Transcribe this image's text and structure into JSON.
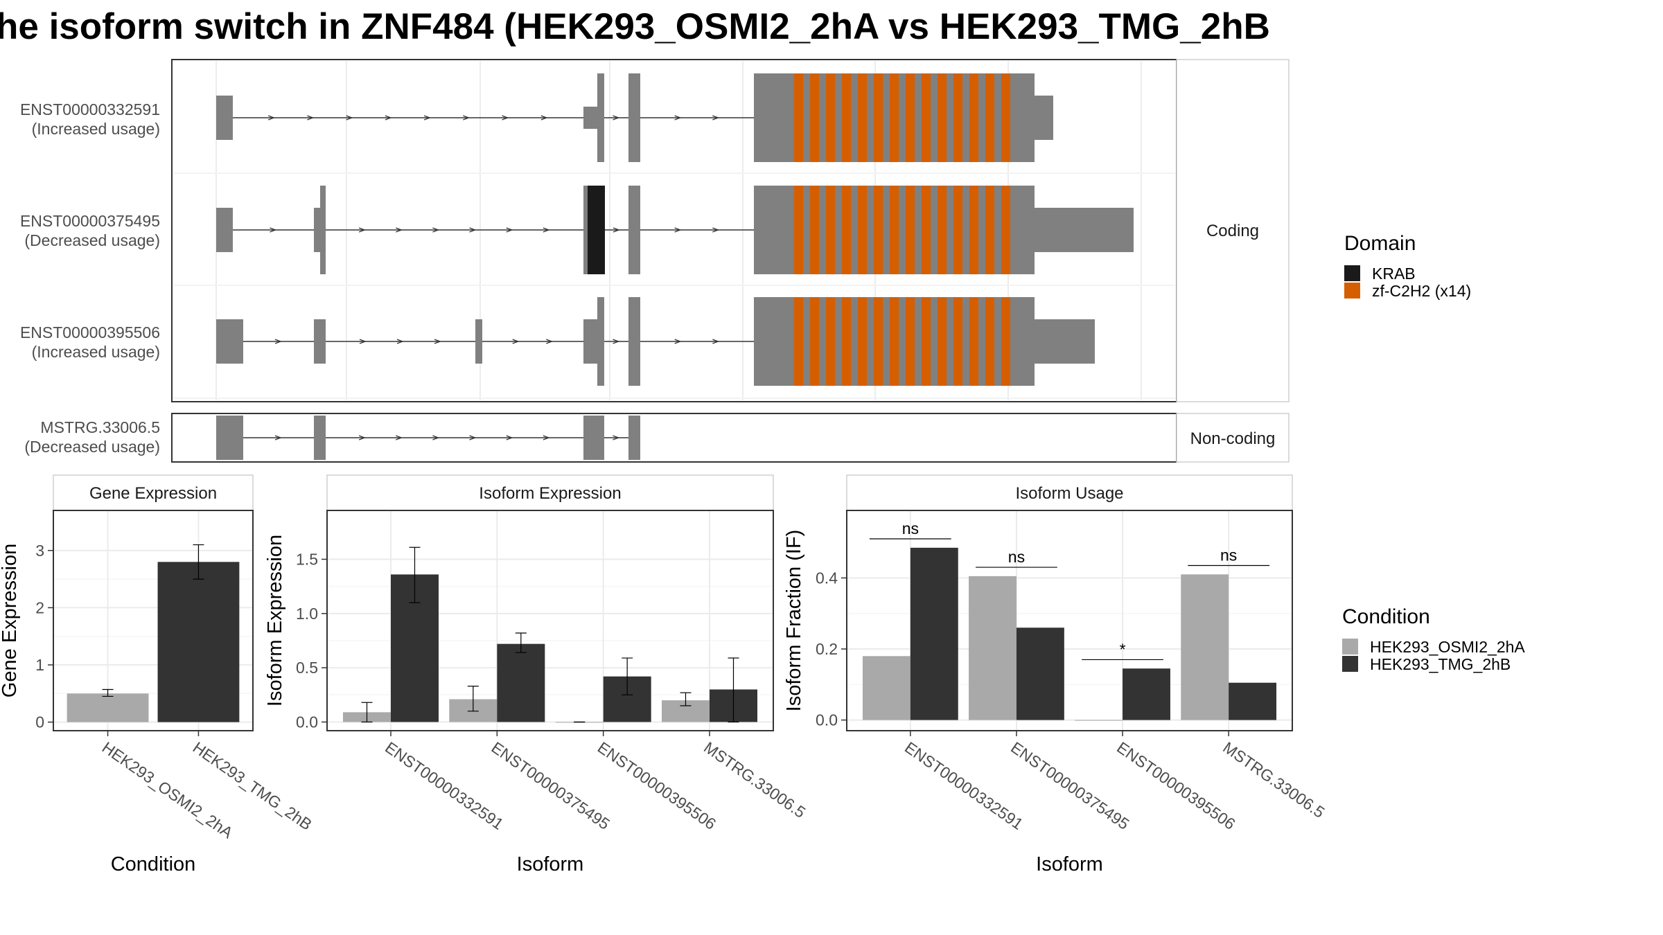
{
  "title": "he isoform switch in ZNF484 (HEK293_OSMI2_2hA vs HEK293_TMG_2hB",
  "colors": {
    "exon": "#808080",
    "krab": "#1a1a1a",
    "zfc2h2": "#d55e00",
    "cond_a": "#a9a9a9",
    "cond_b": "#333333"
  },
  "transcripts": {
    "coding_strip": "Coding",
    "noncoding_strip": "Non-coding",
    "items": [
      {
        "id": "ENST00000332591",
        "usage": "(Increased usage)",
        "group": "coding"
      },
      {
        "id": "ENST00000375495",
        "usage": "(Decreased usage)",
        "group": "coding"
      },
      {
        "id": "ENST00000395506",
        "usage": "(Increased usage)",
        "group": "coding"
      },
      {
        "id": "MSTRG.33006.5",
        "usage": "(Decreased usage)",
        "group": "noncoding"
      }
    ]
  },
  "legend_domain": {
    "title": "Domain",
    "items": [
      {
        "label": "KRAB",
        "color": "#1a1a1a"
      },
      {
        "label": "zf-C2H2 (x14)",
        "color": "#d55e00"
      }
    ]
  },
  "legend_condition": {
    "title": "Condition",
    "items": [
      {
        "label": "HEK293_OSMI2_2hA",
        "color": "#a9a9a9"
      },
      {
        "label": "HEK293_TMG_2hB",
        "color": "#333333"
      }
    ]
  },
  "chart_data": [
    {
      "type": "bar",
      "title": "Gene Expression",
      "xlabel": "Condition",
      "ylabel": "Gene Expression",
      "categories": [
        "HEK293_OSMI2_2hA",
        "HEK293_TMG_2hB"
      ],
      "values": [
        0.5,
        2.8
      ],
      "err_low": [
        0.45,
        2.5
      ],
      "err_high": [
        0.57,
        3.1
      ],
      "yticks": [
        "0",
        "1",
        "2",
        "3"
      ],
      "ylim": [
        -0.15,
        3.7
      ],
      "grid": true
    },
    {
      "type": "bar",
      "title": "Isoform Expression",
      "xlabel": "Isoform",
      "ylabel": "Isoform Expression",
      "categories": [
        "ENST00000332591",
        "ENST00000375495",
        "ENST00000395506",
        "MSTRG.33006.5"
      ],
      "series": [
        {
          "name": "HEK293_OSMI2_2hA",
          "values": [
            0.09,
            0.21,
            0.0,
            0.2
          ],
          "err_low": [
            0.0,
            0.1,
            0.0,
            0.15
          ],
          "err_high": [
            0.18,
            0.33,
            0.0,
            0.27
          ]
        },
        {
          "name": "HEK293_TMG_2hB",
          "values": [
            1.36,
            0.72,
            0.42,
            0.3
          ],
          "err_low": [
            1.1,
            0.64,
            0.25,
            0.0
          ],
          "err_high": [
            1.61,
            0.82,
            0.59,
            0.59
          ]
        }
      ],
      "yticks": [
        "0.0",
        "0.5",
        "1.0",
        "1.5"
      ],
      "ylim": [
        -0.08,
        1.95
      ],
      "grid": true
    },
    {
      "type": "bar",
      "title": "Isoform Usage",
      "xlabel": "Isoform",
      "ylabel": "Isoform Fraction (IF)",
      "categories": [
        "ENST00000332591",
        "ENST00000375495",
        "ENST00000395506",
        "MSTRG.33006.5"
      ],
      "series": [
        {
          "name": "HEK293_OSMI2_2hA",
          "values": [
            0.18,
            0.405,
            0.0,
            0.41
          ]
        },
        {
          "name": "HEK293_TMG_2hB",
          "values": [
            0.485,
            0.26,
            0.145,
            0.105
          ]
        }
      ],
      "significance": [
        "ns",
        "ns",
        "*",
        "ns"
      ],
      "yticks": [
        "0.0",
        "0.2",
        "0.4"
      ],
      "ylim": [
        -0.03,
        0.59
      ],
      "grid": true
    }
  ]
}
